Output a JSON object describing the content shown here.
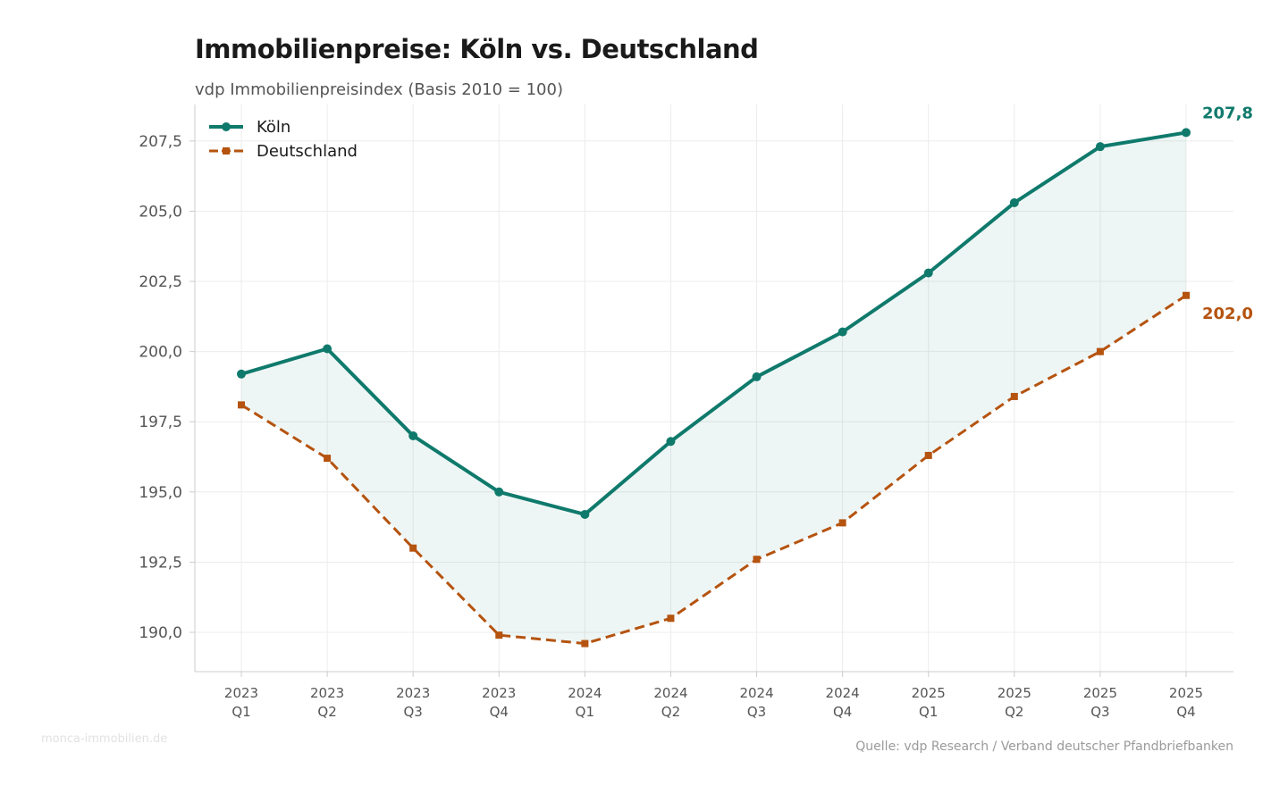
{
  "title": "Immobilienpreise: Köln vs. Deutschland",
  "subtitle": "vdp Immobilienpreisindex (Basis 2010 = 100)",
  "watermark": "monca-immobilien.de",
  "source": "Quelle: vdp Research / Verband deutscher Pfandbriefbanken",
  "chart_data": {
    "type": "line",
    "title": "Immobilienpreise: Köln vs. Deutschland",
    "subtitle": "vdp Immobilienpreisindex (Basis 2010 = 100)",
    "categories": [
      [
        "2023",
        "Q1"
      ],
      [
        "2023",
        "Q2"
      ],
      [
        "2023",
        "Q3"
      ],
      [
        "2023",
        "Q4"
      ],
      [
        "2024",
        "Q1"
      ],
      [
        "2024",
        "Q2"
      ],
      [
        "2024",
        "Q3"
      ],
      [
        "2024",
        "Q4"
      ],
      [
        "2025",
        "Q1"
      ],
      [
        "2025",
        "Q2"
      ],
      [
        "2025",
        "Q3"
      ],
      [
        "2025",
        "Q4"
      ]
    ],
    "yticks": [
      190.0,
      192.5,
      195.0,
      197.5,
      200.0,
      202.5,
      205.0,
      207.5
    ],
    "ytick_labels": [
      "190,0",
      "192,5",
      "195,0",
      "197,5",
      "200,0",
      "202,5",
      "205,0",
      "207,5"
    ],
    "ylim": [
      188.6,
      208.8
    ],
    "grid": true,
    "legend_position": "top-left",
    "fill_between": true,
    "series": [
      {
        "name": "Köln",
        "color": "#0f7a6c",
        "style": "solid",
        "marker": "circle",
        "values": [
          199.2,
          200.1,
          197.0,
          195.0,
          194.2,
          196.8,
          199.1,
          200.7,
          202.8,
          205.3,
          207.3,
          207.8
        ],
        "end_label": "207,8"
      },
      {
        "name": "Deutschland",
        "color": "#b5530f",
        "style": "dashed",
        "marker": "square",
        "values": [
          198.1,
          196.2,
          193.0,
          189.9,
          189.6,
          190.5,
          192.6,
          193.9,
          196.3,
          198.4,
          200.0,
          202.0
        ],
        "end_label": "202,0"
      }
    ]
  }
}
